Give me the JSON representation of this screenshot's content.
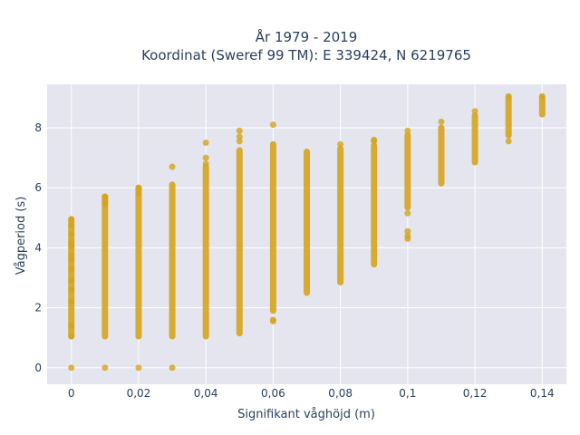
{
  "chart_data": {
    "type": "scatter",
    "title_line1": "År 1979 - 2019",
    "title_line2": "Koordinat (Sweref 99 TM): E 339424, N 6219765",
    "xlabel": "Signifikant våghöjd (m)",
    "ylabel": "Vågperiod (s)",
    "xlim": [
      -0.0072,
      0.1472
    ],
    "ylim": [
      -0.55,
      9.45
    ],
    "x_ticks": [
      0,
      0.02,
      0.04,
      0.06,
      0.08,
      0.1,
      0.12,
      0.14
    ],
    "x_tick_labels": [
      "0",
      "0,02",
      "0,04",
      "0,06",
      "0,08",
      "0,1",
      "0,12",
      "0,14"
    ],
    "y_ticks": [
      0,
      2,
      4,
      6,
      8
    ],
    "y_tick_labels": [
      "0",
      "2",
      "4",
      "6",
      "8"
    ],
    "grid": true,
    "marker_color": "#d4a419",
    "plot_bg": "#e5e5ef",
    "columns": [
      {
        "x": 0.0,
        "min": 1.05,
        "max": 4.95,
        "points": [
          0.0,
          1.05,
          1.4,
          2.2,
          2.6,
          2.9,
          3.3,
          3.6,
          3.75,
          4.05,
          4.2,
          4.45,
          4.75,
          4.95
        ]
      },
      {
        "x": 0.01,
        "min": 1.05,
        "max": 5.7,
        "points": [
          0.0,
          5.45,
          5.55,
          5.7
        ]
      },
      {
        "x": 0.02,
        "min": 1.05,
        "max": 6.0,
        "points": [
          0.0,
          5.8,
          6.0
        ]
      },
      {
        "x": 0.03,
        "min": 1.05,
        "max": 6.1,
        "points": [
          0.0,
          6.7
        ]
      },
      {
        "x": 0.04,
        "min": 1.05,
        "max": 6.7,
        "points": [
          6.8,
          7.0,
          7.5
        ]
      },
      {
        "x": 0.05,
        "min": 1.15,
        "max": 7.25,
        "points": [
          7.55,
          7.7,
          7.9
        ]
      },
      {
        "x": 0.06,
        "min": 1.9,
        "max": 7.45,
        "points": [
          1.55,
          1.6,
          8.1
        ]
      },
      {
        "x": 0.07,
        "min": 2.5,
        "max": 7.2,
        "points": []
      },
      {
        "x": 0.08,
        "min": 2.85,
        "max": 7.3,
        "points": [
          7.45
        ]
      },
      {
        "x": 0.09,
        "min": 3.45,
        "max": 7.4,
        "points": [
          7.55,
          7.6
        ]
      },
      {
        "x": 0.1,
        "min": 5.35,
        "max": 7.75,
        "points": [
          4.3,
          4.4,
          4.55,
          5.15,
          7.9
        ]
      },
      {
        "x": 0.11,
        "min": 6.15,
        "max": 8.0,
        "points": [
          8.2
        ]
      },
      {
        "x": 0.12,
        "min": 6.85,
        "max": 8.4,
        "points": [
          8.55
        ]
      },
      {
        "x": 0.13,
        "min": 7.75,
        "max": 9.0,
        "points": [
          7.55,
          9.05
        ]
      },
      {
        "x": 0.14,
        "min": 8.45,
        "max": 9.0,
        "points": [
          9.05
        ]
      }
    ]
  }
}
